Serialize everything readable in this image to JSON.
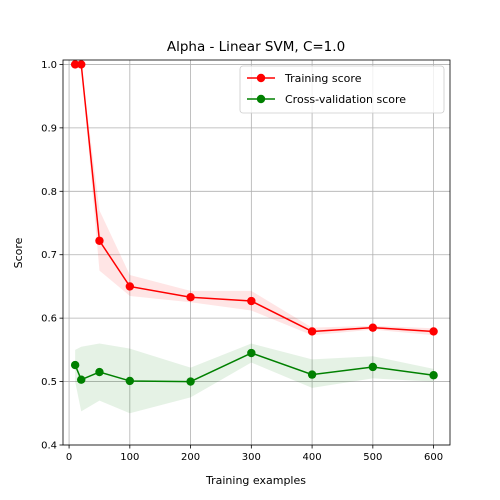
{
  "chart_data": {
    "type": "line",
    "title": "Alpha - Linear SVM, C=1.0",
    "xlabel": "Training examples",
    "ylabel": "Score",
    "xlim": [
      -10,
      627
    ],
    "ylim": [
      0.4,
      1.007
    ],
    "xticks": [
      0,
      100,
      200,
      300,
      400,
      500,
      600
    ],
    "yticks": [
      0.4,
      0.5,
      0.6,
      0.7,
      0.8,
      0.9,
      1.0
    ],
    "xtick_labels": [
      "0",
      "100",
      "200",
      "300",
      "400",
      "500",
      "600"
    ],
    "ytick_labels": [
      "0.4",
      "0.5",
      "0.6",
      "0.7",
      "0.8",
      "0.9",
      "1.0"
    ],
    "grid": true,
    "legend_position": "top-right",
    "x": [
      10,
      20,
      50,
      100,
      200,
      300,
      400,
      500,
      600
    ],
    "series": [
      {
        "name": "Training score",
        "color": "#ff0000",
        "values": [
          1.0,
          1.0,
          0.722,
          0.65,
          0.633,
          0.627,
          0.579,
          0.585,
          0.579
        ],
        "band_lower": [
          1.0,
          1.0,
          0.675,
          0.635,
          0.625,
          0.612,
          0.573,
          0.582,
          0.573
        ],
        "band_upper": [
          1.0,
          1.0,
          0.77,
          0.668,
          0.643,
          0.643,
          0.585,
          0.588,
          0.584
        ]
      },
      {
        "name": "Cross-validation score",
        "color": "#008000",
        "values": [
          0.526,
          0.503,
          0.515,
          0.501,
          0.5,
          0.545,
          0.511,
          0.523,
          0.51
        ],
        "band_lower": [
          0.5,
          0.453,
          0.47,
          0.45,
          0.475,
          0.53,
          0.49,
          0.505,
          0.5
        ],
        "band_upper": [
          0.55,
          0.555,
          0.56,
          0.552,
          0.522,
          0.56,
          0.535,
          0.54,
          0.52
        ]
      }
    ]
  }
}
